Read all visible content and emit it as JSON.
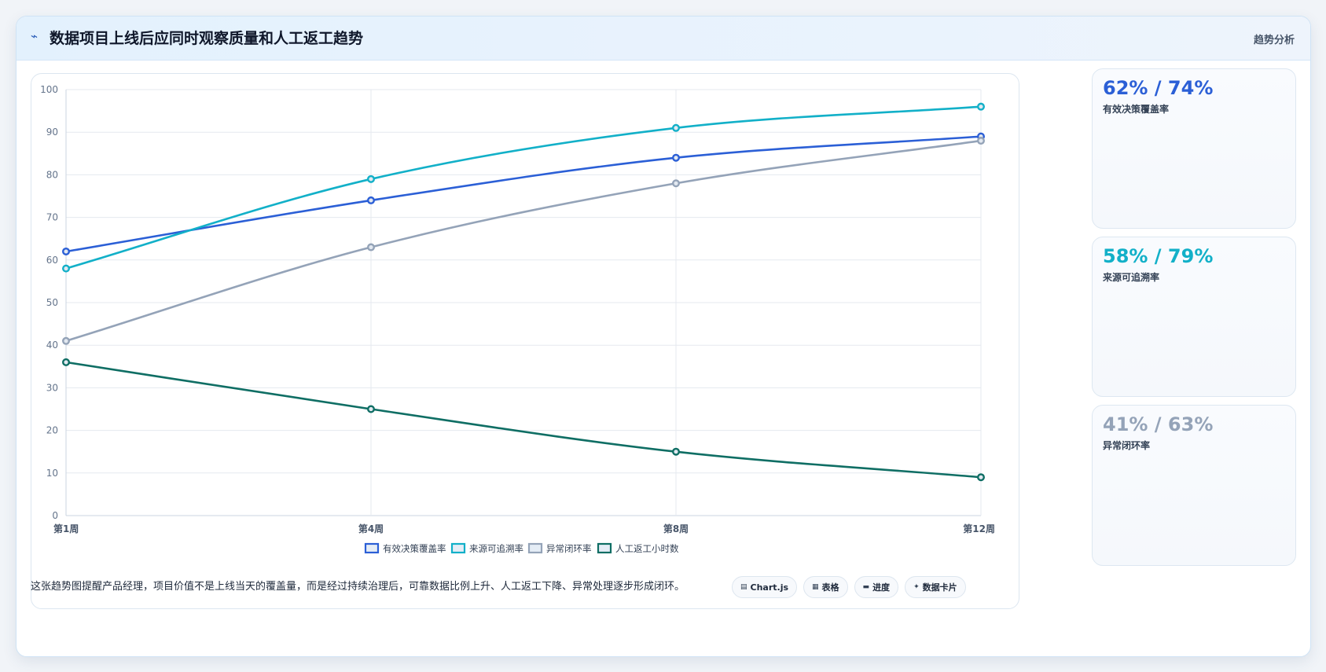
{
  "header": {
    "icon": "trend-icon",
    "title": "数据项目上线后应同时观察质量和人工返工趋势",
    "tag": "趋势分析"
  },
  "chart_data": {
    "type": "line",
    "categories": [
      "第1周",
      "第4周",
      "第8周",
      "第12周"
    ],
    "ylim": [
      0,
      100
    ],
    "yticks": [
      0,
      10,
      20,
      30,
      40,
      50,
      60,
      70,
      80,
      90,
      100
    ],
    "grid": true,
    "legend_position": "bottom",
    "series": [
      {
        "name": "有效决策覆盖率",
        "color": "#2b5fd6",
        "values": [
          62,
          74,
          84,
          89
        ]
      },
      {
        "name": "来源可追溯率",
        "color": "#12b0c8",
        "values": [
          58,
          79,
          91,
          96
        ]
      },
      {
        "name": "异常闭环率",
        "color": "#94a3b8",
        "values": [
          41,
          63,
          78,
          88
        ]
      },
      {
        "name": "人工返工小时数",
        "color": "#0f6e64",
        "values": [
          36,
          25,
          15,
          9
        ]
      }
    ]
  },
  "stats": [
    {
      "value": "62% / 74%",
      "label": "有效决策覆盖率",
      "color": "#2b5fd6"
    },
    {
      "value": "58% / 79%",
      "label": "来源可追溯率",
      "color": "#12b0c8"
    },
    {
      "value": "41% / 63%",
      "label": "异常闭环率",
      "color": "#94a3b8"
    }
  ],
  "footnote": "这张趋势图提醒产品经理，项目价值不是上线当天的覆盖量，而是经过持续治理后，可靠数据比例上升、人工返工下降、异常处理逐步形成闭环。",
  "chips": [
    {
      "icon": "chart-icon",
      "label": "Chart.js"
    },
    {
      "icon": "table-icon",
      "label": "表格"
    },
    {
      "icon": "progress-icon",
      "label": "进度"
    },
    {
      "icon": "card-icon",
      "label": "数据卡片"
    }
  ]
}
